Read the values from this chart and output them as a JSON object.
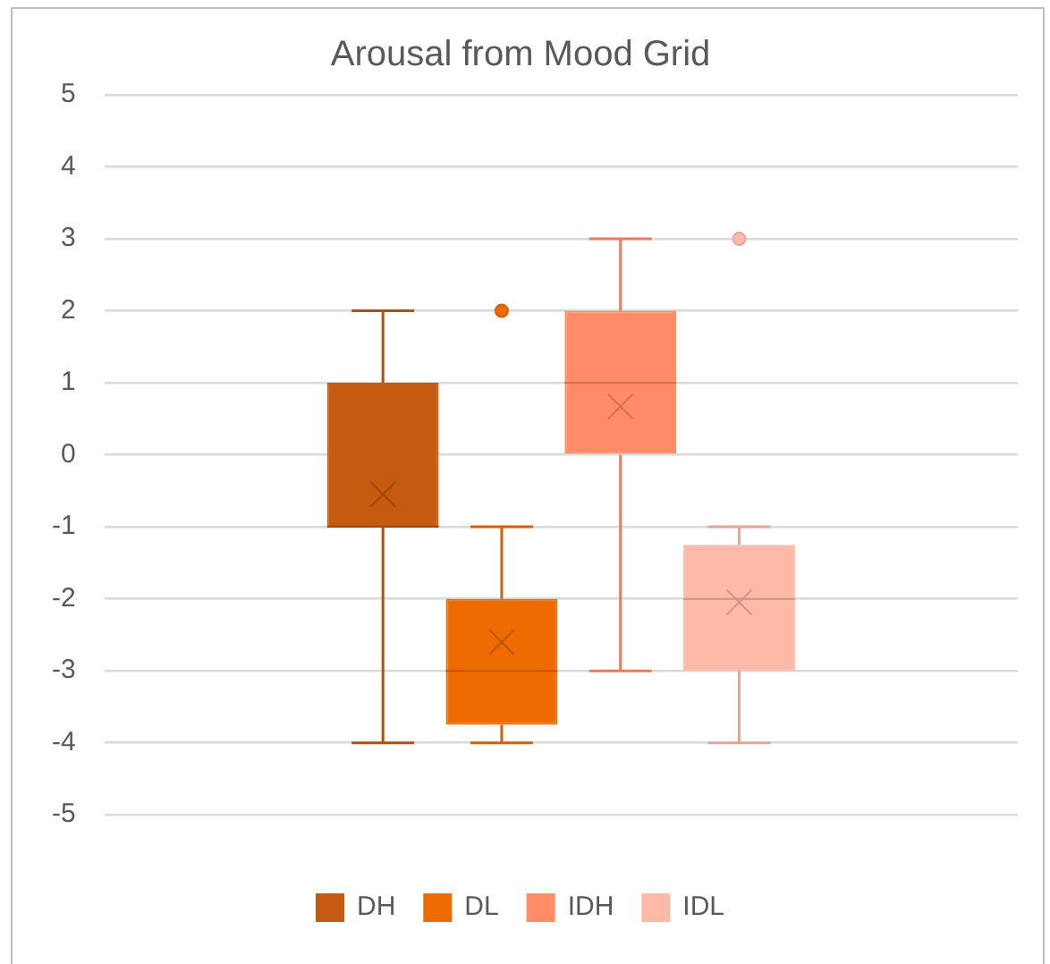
{
  "chart_data": {
    "type": "box",
    "title": "Arousal from Mood Grid",
    "categories": [
      null
    ],
    "series": [
      {
        "name": "DH",
        "color": "#c55a11",
        "boxes": [
          {
            "low": -4,
            "q1": -1,
            "median": -1,
            "q3": 1,
            "high": 2,
            "mean": -0.55
          }
        ]
      },
      {
        "name": "DL",
        "color": "#ed6b00",
        "boxes": [
          {
            "low": -4,
            "q1": -3.75,
            "median": -3,
            "q3": -2,
            "high": -1,
            "mean": -2.6,
            "outliers": [
              2
            ]
          }
        ]
      },
      {
        "name": "IDH",
        "color": "#ff8c66",
        "boxes": [
          {
            "low": -3,
            "q1": 0,
            "median": 1,
            "q3": 2,
            "high": 3,
            "mean": 0.67
          }
        ]
      },
      {
        "name": "IDL",
        "color": "#ffb9a8",
        "boxes": [
          {
            "low": -4,
            "q1": -3,
            "median": -2,
            "q3": -1.25,
            "high": -1,
            "mean": -2.05,
            "outliers": [
              3
            ]
          }
        ]
      }
    ],
    "ylim": [
      -5,
      5
    ],
    "yticks": [
      -5,
      -4,
      -3,
      -2,
      -1,
      0,
      1,
      2,
      3,
      4,
      5
    ],
    "grid": "y",
    "legend": "bottom"
  }
}
